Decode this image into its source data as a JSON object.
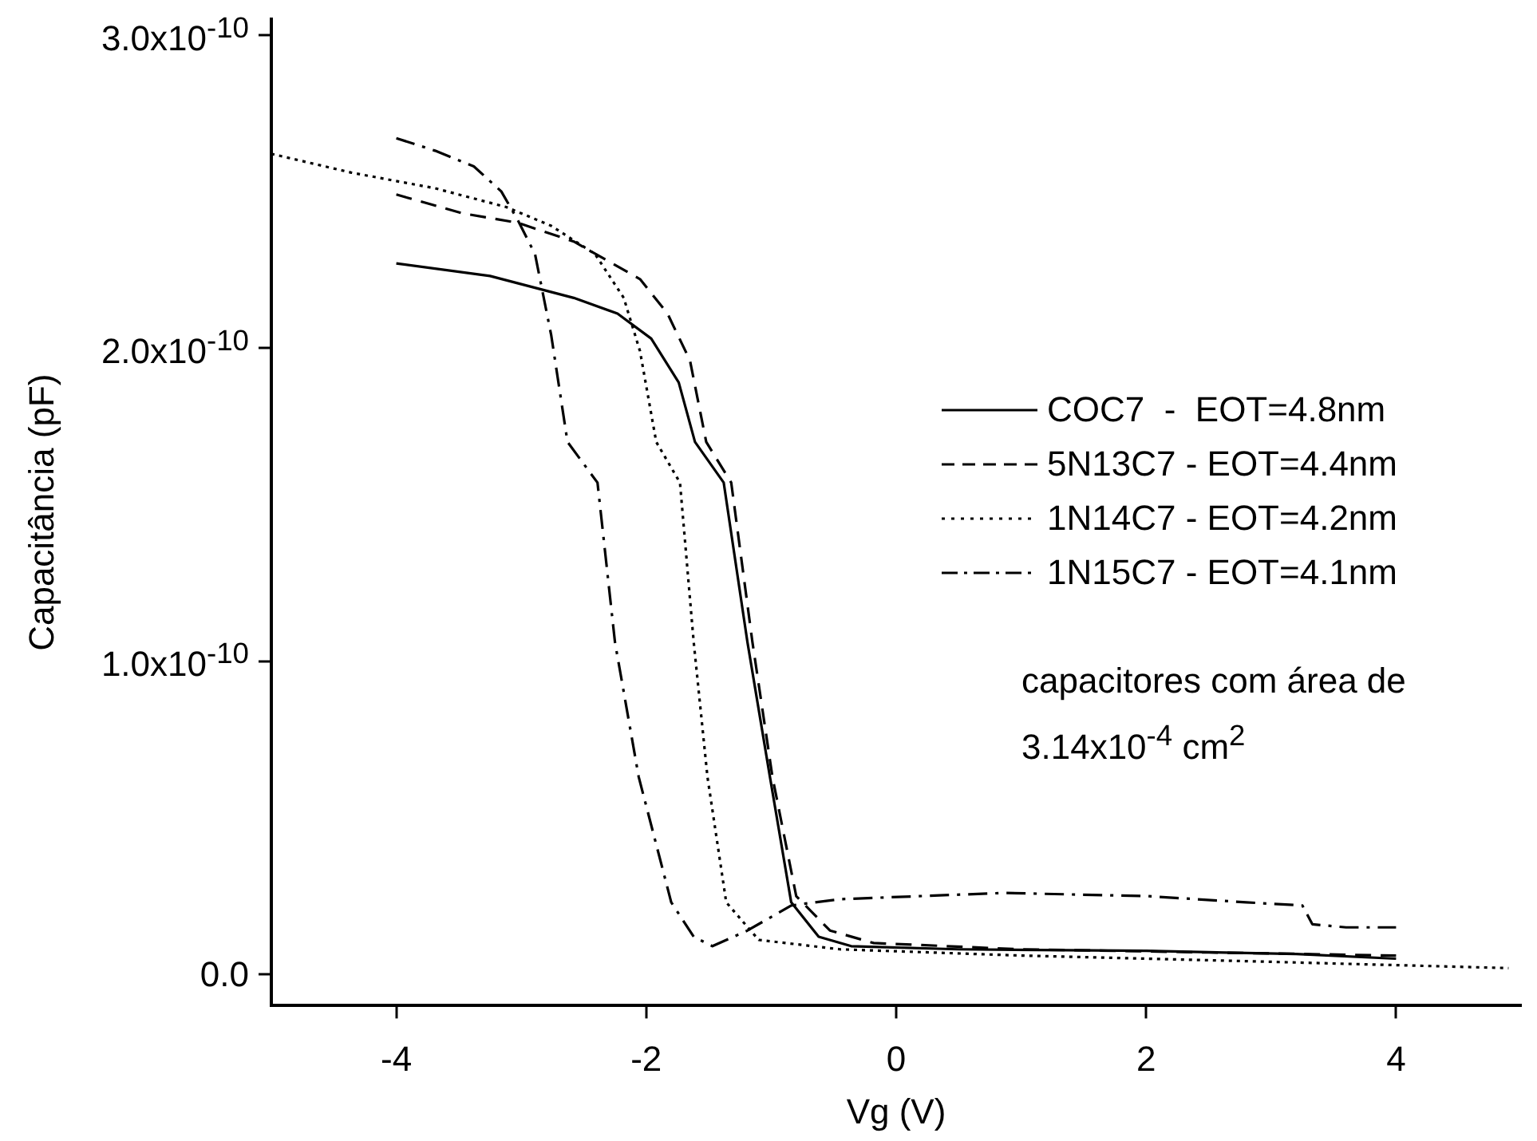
{
  "chart_data": {
    "type": "line",
    "xlabel": "Vg (V)",
    "ylabel": "Capacitância (pF)",
    "xlim": [
      -5,
      5
    ],
    "xticks": [
      -4,
      -2,
      0,
      2,
      4
    ],
    "ylim": [
      -1e-11,
      3.05e-10
    ],
    "yticks": [
      {
        "value": 0,
        "label": "0.0"
      },
      {
        "value": 1e-10,
        "label": "1.0x10$^{-10}$"
      },
      {
        "value": 2e-10,
        "label": "2.0x10$^{-10}$"
      },
      {
        "value": 3e-10,
        "label": "3.0x10$^{-10}$"
      }
    ],
    "grid": false,
    "legend": "right",
    "marker": "none",
    "annotations": [
      "capacitores com área de 3.14x10$^{-4}$ cm$^{2}$"
    ],
    "series": [
      {
        "name": "COC7  -  EOT=4.8nm",
        "color": "#000000",
        "line_style": "solid",
        "x": [
          -4,
          -3.25,
          -2.58,
          -2.23,
          -1.96,
          -1.74,
          -1.61,
          -1.38,
          -1.19,
          -1.01,
          -0.84,
          -0.62,
          -0.36,
          0.5,
          2,
          3.2,
          4
        ],
        "values": [
          2.27e-10,
          2.23e-10,
          2.16e-10,
          2.11e-10,
          2.03e-10,
          1.89e-10,
          1.7e-10,
          1.57e-10,
          1.06e-10,
          6.3e-11,
          2.3e-11,
          1.2e-11,
          9e-12,
          8e-12,
          7.5e-12,
          6.5e-12,
          5e-12
        ]
      },
      {
        "name": "5N13C7 - EOT=4.4nm",
        "color": "#000000",
        "line_style": "dashed",
        "x": [
          -4,
          -3.47,
          -3.03,
          -2.58,
          -2.05,
          -1.83,
          -1.65,
          -1.52,
          -1.32,
          -1.15,
          -0.99,
          -0.8,
          -0.53,
          -0.18,
          1,
          2.5,
          4
        ],
        "values": [
          2.49e-10,
          2.43e-10,
          2.4e-10,
          2.34e-10,
          2.22e-10,
          2.11e-10,
          1.96e-10,
          1.7e-10,
          1.57e-10,
          1.06e-10,
          6.3e-11,
          2.5e-11,
          1.4e-11,
          1e-11,
          8e-12,
          7e-12,
          6e-12
        ]
      },
      {
        "name": "1N14C7 - EOT=4.2nm",
        "color": "#000000",
        "line_style": "dotted",
        "x": [
          -5,
          -4.36,
          -3.69,
          -3.12,
          -2.76,
          -2.41,
          -2.18,
          -2.05,
          -1.92,
          -1.73,
          -1.62,
          -1.51,
          -1.36,
          -1.1,
          -0.45,
          1,
          3,
          4.9
        ],
        "values": [
          2.62e-10,
          2.56e-10,
          2.51e-10,
          2.45e-10,
          2.39e-10,
          2.3e-10,
          2.16e-10,
          1.99e-10,
          1.7e-10,
          1.57e-10,
          1.06e-10,
          6.3e-11,
          2.3e-11,
          1.1e-11,
          8e-12,
          6e-12,
          4e-12,
          2e-12
        ]
      },
      {
        "name": "1N15C7 - EOT=4.1nm",
        "color": "#000000",
        "line_style": "dashdot",
        "x": [
          -4,
          -3.69,
          -3.38,
          -3.16,
          -3.03,
          -2.89,
          -2.76,
          -2.63,
          -2.39,
          -2.25,
          -2.06,
          -1.8,
          -1.62,
          -1.47,
          -1.19,
          -0.84,
          -0.45,
          0.86,
          2,
          2.8,
          3.25,
          3.33,
          3.6,
          4
        ],
        "values": [
          2.67e-10,
          2.63e-10,
          2.58e-10,
          2.5e-10,
          2.41e-10,
          2.3e-10,
          2.04e-10,
          1.7e-10,
          1.57e-10,
          1.06e-10,
          6.3e-11,
          2.3e-11,
          1.2e-11,
          9e-12,
          1.4e-11,
          2.2e-11,
          2.4e-11,
          2.6e-11,
          2.5e-11,
          2.3e-11,
          2.2e-11,
          1.6e-11,
          1.5e-11,
          1.5e-11
        ]
      }
    ]
  }
}
